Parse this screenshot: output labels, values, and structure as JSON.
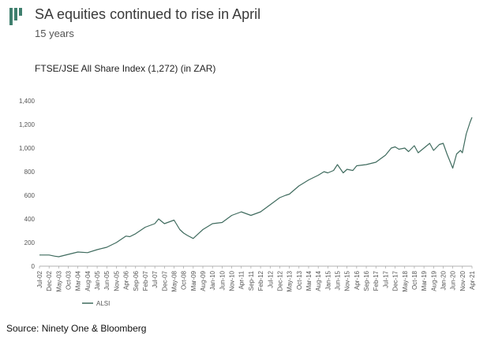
{
  "header": {
    "title": "SA equities continued to rise in April",
    "subtitle": "15 years",
    "logo_color": "#3f7f6e"
  },
  "footer": {
    "source": "Source: Ninety One & Bloomberg"
  },
  "chart_data": {
    "type": "line",
    "title": "FTSE/JSE All Share Index (1,272) (in ZAR)",
    "xlabel": "",
    "ylabel": "",
    "ylim": [
      0,
      1400
    ],
    "yticks": [
      0,
      200,
      400,
      600,
      800,
      1000,
      1200,
      1400
    ],
    "ytick_labels": [
      "0",
      "200",
      "400",
      "600",
      "800",
      "1,000",
      "1,200",
      "1,400"
    ],
    "x_range": [
      "2002-07",
      "2021-04"
    ],
    "xtick_labels": [
      "Jul-02",
      "Dec-02",
      "May-03",
      "Oct-03",
      "Mar-04",
      "Aug-04",
      "Jan-05",
      "Jun-05",
      "Nov-05",
      "Apr-06",
      "Sep-06",
      "Feb-07",
      "Jul-07",
      "Dec-07",
      "May-08",
      "Oct-08",
      "Mar-09",
      "Aug-09",
      "Jan-10",
      "Jun-10",
      "Nov-10",
      "Apr-11",
      "Sep-11",
      "Feb-12",
      "Jul-12",
      "Dec-12",
      "May-13",
      "Oct-13",
      "Mar-14",
      "Aug-14",
      "Jan-15",
      "Jun-15",
      "Nov-15",
      "Apr-16",
      "Sep-16",
      "Feb-17",
      "Jul-17",
      "Dec-17",
      "May-18",
      "Oct-18",
      "Mar-19",
      "Aug-19",
      "Jan-20",
      "Jun-20",
      "Nov-20",
      "Apr-21"
    ],
    "grid": false,
    "legend": "bottom-left",
    "series": [
      {
        "name": "ALSI",
        "color": "#3f6b5e",
        "x": [
          "2002-07",
          "2002-12",
          "2003-03",
          "2003-05",
          "2003-10",
          "2004-03",
          "2004-08",
          "2005-01",
          "2005-06",
          "2005-11",
          "2006-04",
          "2006-06",
          "2006-09",
          "2007-02",
          "2007-07",
          "2007-09",
          "2007-12",
          "2008-05",
          "2008-08",
          "2008-10",
          "2008-12",
          "2009-03",
          "2009-08",
          "2010-01",
          "2010-06",
          "2010-11",
          "2011-04",
          "2011-09",
          "2012-02",
          "2012-07",
          "2012-12",
          "2013-03",
          "2013-05",
          "2013-10",
          "2014-03",
          "2014-08",
          "2014-11",
          "2015-01",
          "2015-04",
          "2015-06",
          "2015-09",
          "2015-11",
          "2016-02",
          "2016-04",
          "2016-09",
          "2017-02",
          "2017-07",
          "2017-10",
          "2017-12",
          "2018-02",
          "2018-05",
          "2018-07",
          "2018-10",
          "2018-12",
          "2019-03",
          "2019-06",
          "2019-08",
          "2019-11",
          "2020-01",
          "2020-03",
          "2020-06",
          "2020-08",
          "2020-10",
          "2020-11",
          "2021-01",
          "2021-03",
          "2021-04"
        ],
        "values": [
          95,
          95,
          85,
          80,
          100,
          120,
          115,
          140,
          160,
          200,
          255,
          250,
          275,
          330,
          360,
          400,
          360,
          390,
          310,
          280,
          260,
          235,
          310,
          360,
          370,
          430,
          460,
          430,
          460,
          520,
          580,
          600,
          610,
          680,
          730,
          770,
          800,
          790,
          810,
          860,
          790,
          820,
          810,
          850,
          860,
          880,
          940,
          1000,
          1010,
          990,
          1000,
          970,
          1020,
          960,
          1000,
          1040,
          980,
          1030,
          1040,
          950,
          830,
          950,
          980,
          960,
          1120,
          1220,
          1260
        ]
      }
    ]
  }
}
